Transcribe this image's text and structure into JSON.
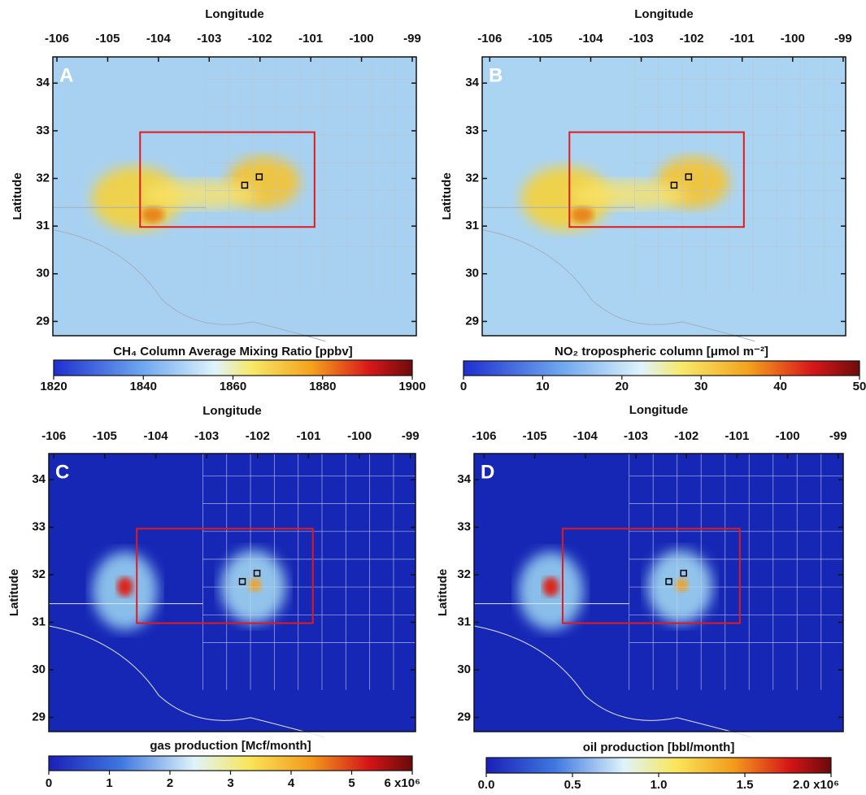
{
  "panels": [
    {
      "letter": "A",
      "x_label": "Longitude",
      "y_label": "Latitude",
      "xlim": [
        -106.08,
        -98.92
      ],
      "ylim": [
        28.7,
        34.55
      ],
      "xticks": [
        -106,
        -105,
        -104,
        -103,
        -102,
        -101,
        -100,
        -99
      ],
      "yticks": [
        29,
        30,
        31,
        32,
        33,
        34
      ],
      "colorbar": {
        "label": "CH₄ Column Average Mixing Ratio [ppbv]",
        "clim": [
          1820,
          1900
        ],
        "ticks": [
          1820,
          1840,
          1860,
          1880,
          1900
        ]
      }
    },
    {
      "letter": "B",
      "x_label": "Longitude",
      "y_label": "Latitude",
      "xlim": [
        -106.15,
        -98.95
      ],
      "ylim": [
        28.7,
        34.55
      ],
      "xticks": [
        -106,
        -105,
        -104,
        -103,
        -102,
        -101,
        -100,
        -99
      ],
      "yticks": [
        29,
        30,
        31,
        32,
        33,
        34
      ],
      "colorbar": {
        "label": "NO₂ tropospheric column [μmol m⁻²]",
        "clim": [
          0,
          50
        ],
        "ticks": [
          0,
          10,
          20,
          30,
          40,
          50
        ]
      }
    },
    {
      "letter": "C",
      "x_label": "Longitude",
      "y_label": "Latitude",
      "xlim": [
        -106.1,
        -98.9
      ],
      "ylim": [
        28.7,
        34.55
      ],
      "xticks": [
        -106,
        -105,
        -104,
        -103,
        -102,
        -101,
        -100,
        -99
      ],
      "yticks": [
        29,
        30,
        31,
        32,
        33,
        34
      ],
      "colorbar": {
        "label": "gas production [Mcf/month]",
        "clim": [
          0,
          6
        ],
        "ticks": [
          0,
          1,
          2,
          3,
          4,
          5,
          {
            "value": 6,
            "label": "6 x10⁶"
          }
        ]
      }
    },
    {
      "letter": "D",
      "x_label": "Longitude",
      "y_label": "Latitude",
      "xlim": [
        -106.2,
        -98.9
      ],
      "ylim": [
        28.7,
        34.55
      ],
      "xticks": [
        -106,
        -105,
        -104,
        -103,
        -102,
        -101,
        -100,
        -99
      ],
      "yticks": [
        29,
        30,
        31,
        32,
        33,
        34
      ],
      "colorbar": {
        "label": "oil production [bbl/month]",
        "clim": [
          0,
          2
        ],
        "ticks": [
          {
            "value": 0,
            "label": "0.0"
          },
          0.5,
          {
            "value": 1,
            "label": "1.0"
          },
          1.5,
          {
            "value": 2,
            "label": "2.0 x10⁶"
          }
        ]
      }
    }
  ]
}
